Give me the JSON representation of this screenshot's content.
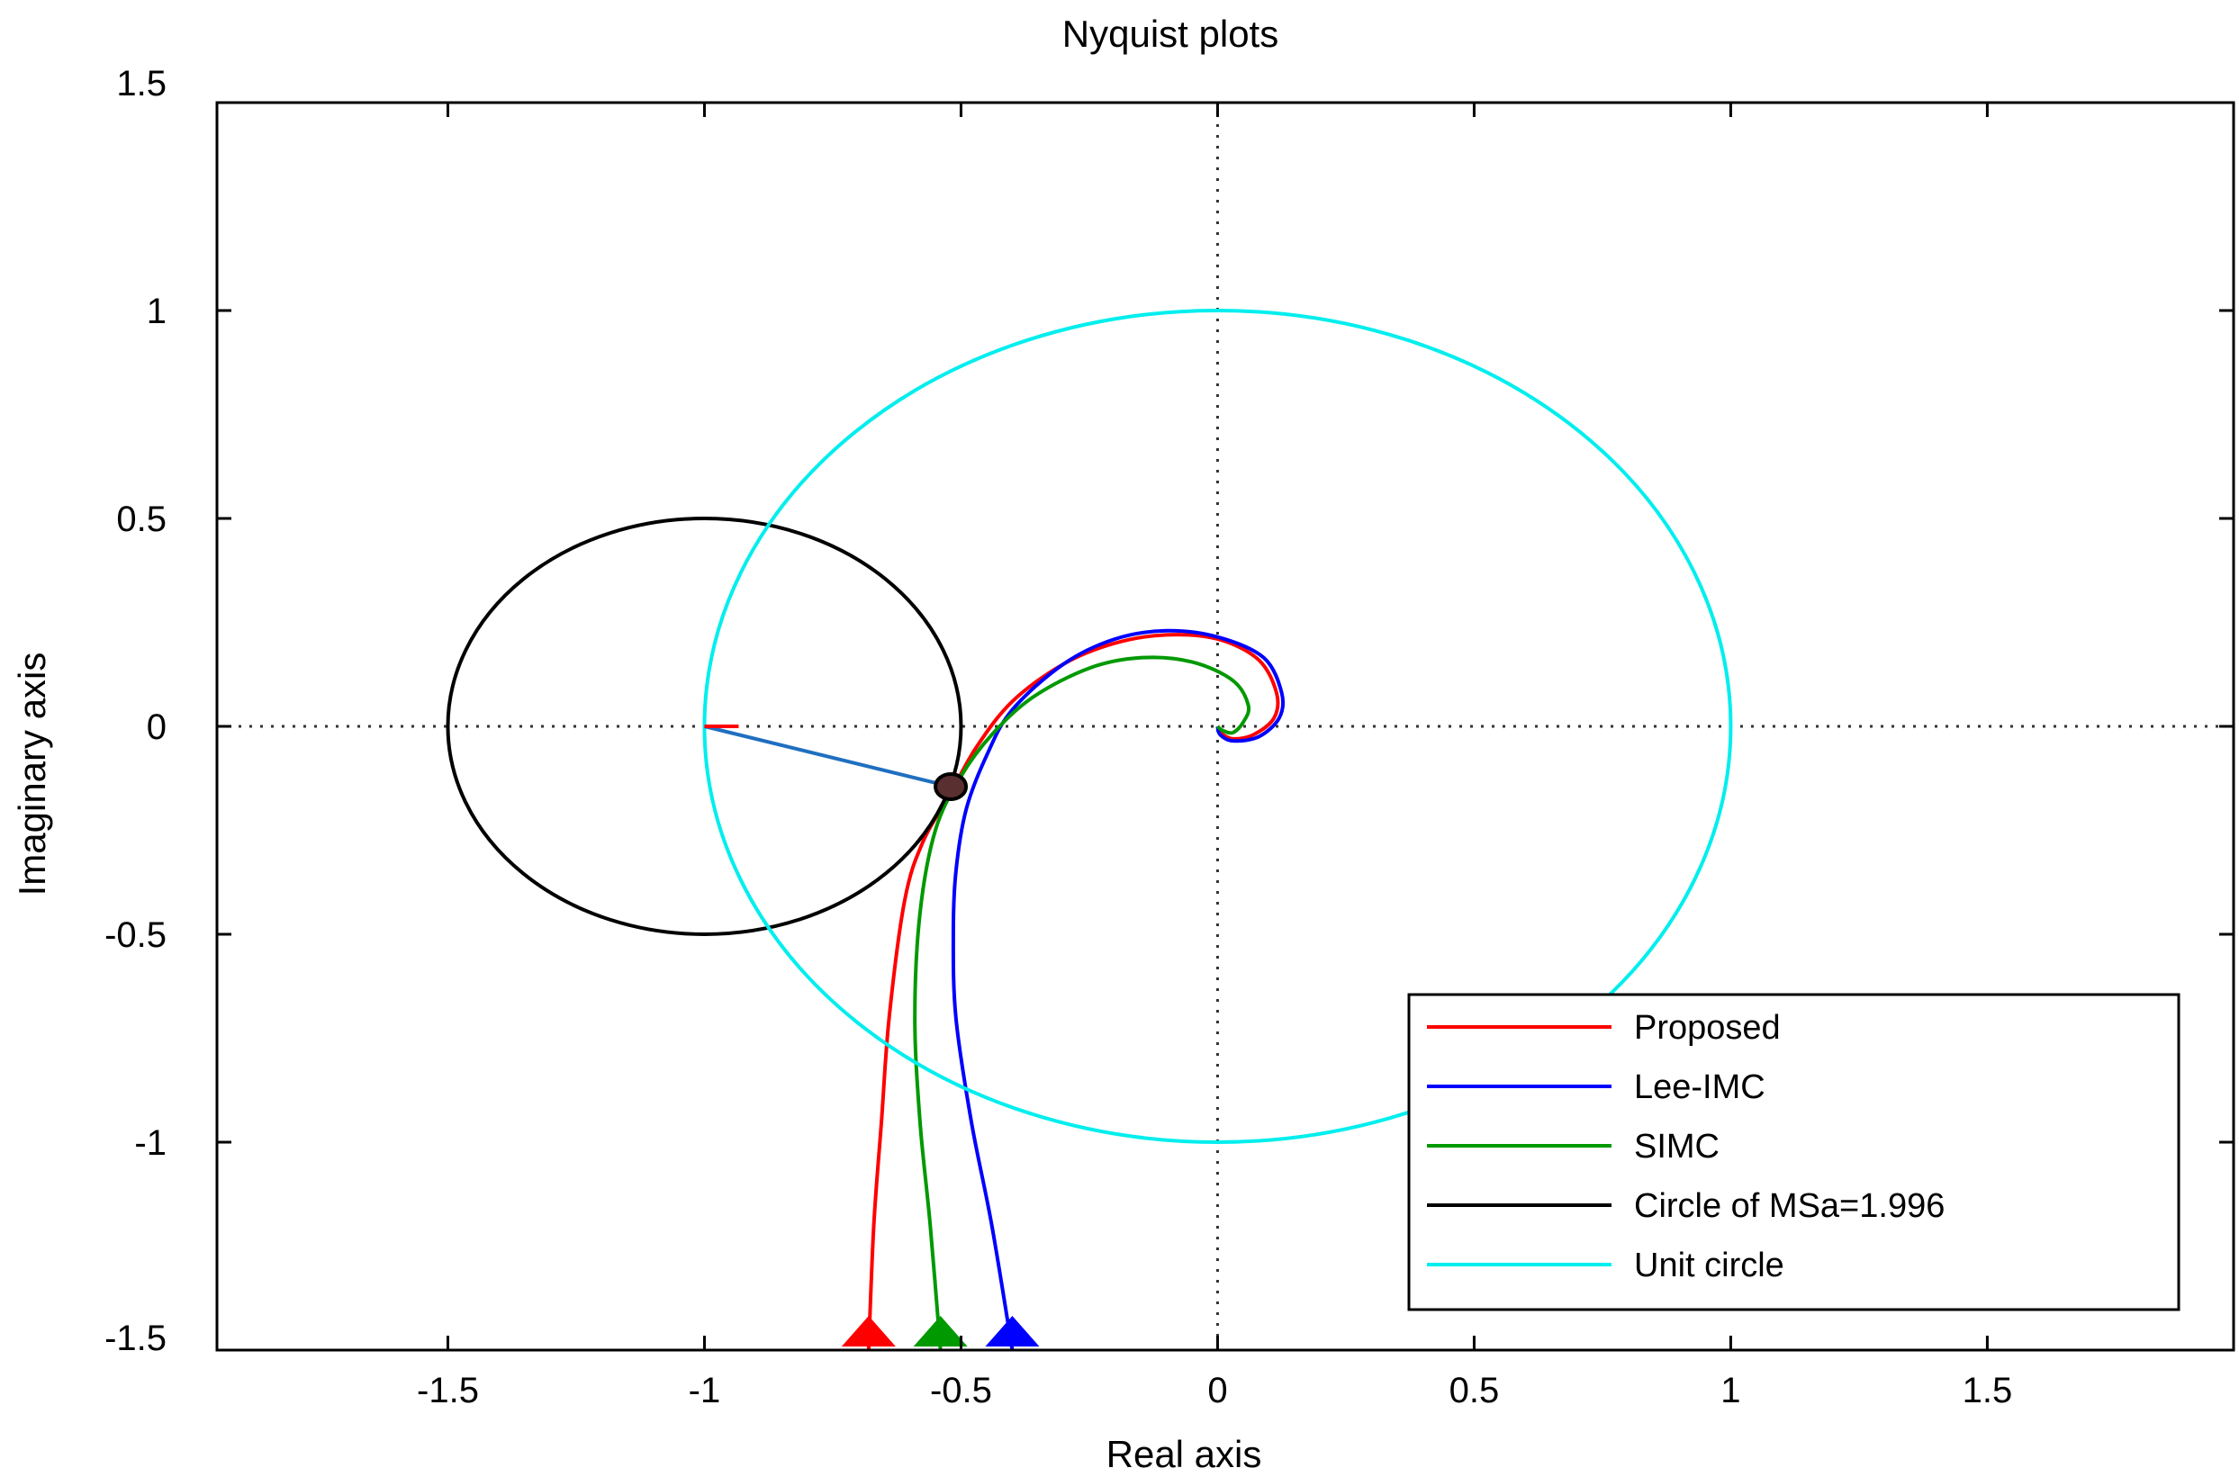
{
  "chart_data": {
    "type": "line",
    "title": "Nyquist plots",
    "xlabel": "Real axis",
    "ylabel": "Imaginary axis",
    "xlim": [
      -1.95,
      1.98
    ],
    "ylim": [
      -1.5,
      1.5
    ],
    "xticks": [
      -1.5,
      -1,
      -0.5,
      0,
      0.5,
      1,
      1.5
    ],
    "yticks": [
      -1.5,
      -1,
      -0.5,
      0,
      0.5,
      1,
      1.5
    ],
    "xtick_labels": [
      "-1.5",
      "-1",
      "-0.5",
      "0",
      "0.5",
      "1",
      "1.5"
    ],
    "ytick_labels": [
      "-1.5",
      "-1",
      "-0.5",
      "0",
      "0.5",
      "1",
      "1.5"
    ],
    "grid": "dotted-origin-lines",
    "legend_position": "bottom-right",
    "series": [
      {
        "name": "Proposed",
        "color": "#ff0000",
        "points": [
          [
            -0.68,
            -1.5
          ],
          [
            -0.67,
            -1.2
          ],
          [
            -0.655,
            -0.95
          ],
          [
            -0.64,
            -0.7
          ],
          [
            -0.61,
            -0.42
          ],
          [
            -0.575,
            -0.28
          ],
          [
            -0.52,
            -0.16
          ],
          [
            -0.47,
            -0.05
          ],
          [
            -0.4,
            0.06
          ],
          [
            -0.3,
            0.15
          ],
          [
            -0.2,
            0.2
          ],
          [
            -0.1,
            0.22
          ],
          [
            0,
            0.21
          ],
          [
            0.08,
            0.16
          ],
          [
            0.115,
            0.08
          ],
          [
            0.11,
            0.02
          ],
          [
            0.07,
            -0.02
          ],
          [
            0.03,
            -0.03
          ],
          [
            0.005,
            -0.015
          ],
          [
            0,
            0
          ]
        ]
      },
      {
        "name": "Lee-IMC",
        "color": "#0000ff",
        "points": [
          [
            -0.4,
            -1.5
          ],
          [
            -0.44,
            -1.2
          ],
          [
            -0.48,
            -0.95
          ],
          [
            -0.51,
            -0.7
          ],
          [
            -0.515,
            -0.5
          ],
          [
            -0.51,
            -0.35
          ],
          [
            -0.49,
            -0.2
          ],
          [
            -0.45,
            -0.07
          ],
          [
            -0.4,
            0.04
          ],
          [
            -0.3,
            0.15
          ],
          [
            -0.2,
            0.21
          ],
          [
            -0.1,
            0.23
          ],
          [
            0,
            0.215
          ],
          [
            0.09,
            0.165
          ],
          [
            0.125,
            0.08
          ],
          [
            0.12,
            0.02
          ],
          [
            0.08,
            -0.025
          ],
          [
            0.03,
            -0.035
          ],
          [
            0.005,
            -0.02
          ],
          [
            0,
            0
          ]
        ]
      },
      {
        "name": "SIMC",
        "color": "#009900",
        "points": [
          [
            -0.54,
            -1.5
          ],
          [
            -0.56,
            -1.2
          ],
          [
            -0.58,
            -0.95
          ],
          [
            -0.59,
            -0.7
          ],
          [
            -0.58,
            -0.45
          ],
          [
            -0.55,
            -0.25
          ],
          [
            -0.5,
            -0.12
          ],
          [
            -0.44,
            -0.02
          ],
          [
            -0.36,
            0.07
          ],
          [
            -0.25,
            0.14
          ],
          [
            -0.15,
            0.165
          ],
          [
            -0.05,
            0.155
          ],
          [
            0.03,
            0.11
          ],
          [
            0.06,
            0.05
          ],
          [
            0.05,
            0.01
          ],
          [
            0.03,
            -0.015
          ],
          [
            0.01,
            -0.01
          ],
          [
            0,
            0
          ]
        ]
      },
      {
        "name": "Circle of MSa=1.996",
        "color": "#000000",
        "shape": "circle",
        "center": [
          -1,
          0
        ],
        "radius": 0.5
      },
      {
        "name": "Unit circle",
        "color": "#00eeee",
        "shape": "circle",
        "center": [
          0,
          0
        ],
        "radius": 1
      }
    ],
    "annotations": [
      {
        "type": "segment",
        "color": "#1f6fc0",
        "from": [
          -1,
          0
        ],
        "to": [
          -0.52,
          -0.145
        ]
      },
      {
        "type": "marker",
        "color": "#000000",
        "at": [
          -0.52,
          -0.145
        ]
      }
    ],
    "arrow_markers": [
      {
        "color": "#ff0000",
        "x": -0.68,
        "y": -1.5
      },
      {
        "color": "#009900",
        "x": -0.54,
        "y": -1.5
      },
      {
        "color": "#0000ff",
        "x": -0.4,
        "y": -1.5
      }
    ]
  }
}
